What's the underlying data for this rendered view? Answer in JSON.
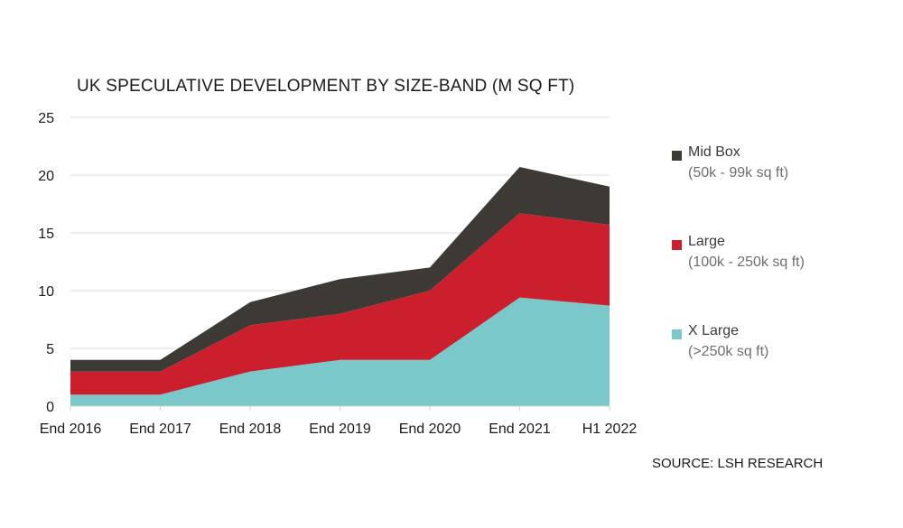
{
  "chart_data": {
    "type": "area",
    "title": "UK SPECULATIVE DEVELOPMENT BY SIZE-BAND (M SQ FT)",
    "categories": [
      "End 2016",
      "End 2017",
      "End 2018",
      "End 2019",
      "End 2020",
      "End 2021",
      "H1 2022"
    ],
    "stacked": true,
    "ylim": [
      0,
      25
    ],
    "yticks": [
      "0",
      "5",
      "10",
      "15",
      "20",
      "25"
    ],
    "grid": true,
    "legend_position": "right",
    "series": [
      {
        "name": "X Large",
        "detail": "(>250k sq ft)",
        "color": "#7ac8c9",
        "values": [
          1,
          1,
          3,
          4,
          4,
          9.4,
          8.7
        ]
      },
      {
        "name": "Large",
        "detail": "(100k - 250k sq ft)",
        "color": "#cc1f2d",
        "values": [
          2,
          2,
          4,
          4,
          6,
          7.3,
          7
        ]
      },
      {
        "name": "Mid Box",
        "detail": "(50k - 99k sq ft)",
        "color": "#3d3935",
        "values": [
          1,
          1,
          2,
          3,
          2,
          4,
          3.3
        ]
      }
    ]
  },
  "legend": [
    {
      "name": "Mid Box",
      "detail": "(50k - 99k sq ft)",
      "color": "#3d3935"
    },
    {
      "name": "Large",
      "detail": "(100k - 250k sq ft)",
      "color": "#cc1f2d"
    },
    {
      "name": "X Large",
      "detail": "(>250k sq ft)",
      "color": "#7ac8c9"
    }
  ],
  "source": "SOURCE: LSH RESEARCH"
}
